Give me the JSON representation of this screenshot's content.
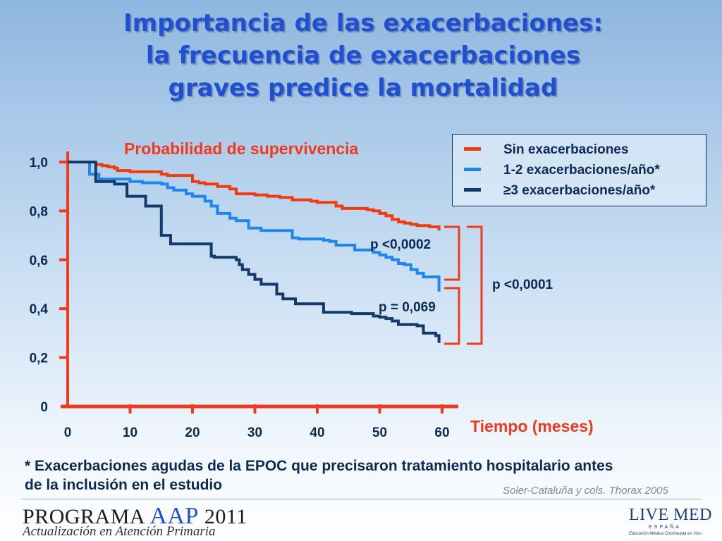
{
  "slide": {
    "title_lines": [
      "Importancia de las exacerbaciones:",
      "la frecuencia de exacerbaciones",
      "graves predice la mortalidad"
    ],
    "footnote_lines": [
      "* Exacerbaciones agudas de la EPOC que precisaron tratamiento hospitalario antes",
      "de la inclusión en el estudio"
    ],
    "citation": "Soler-Cataluña y cols. Thorax 2005"
  },
  "branding": {
    "program_prefix": "PROGRAMA ",
    "program_mark": "AAP",
    "program_year": " 2011",
    "program_subtitle": "Actualización en Atención Primaria",
    "sponsor_name": "LIVE MED",
    "sponsor_country": "ESPAÑA",
    "sponsor_tagline": "Educación Médica Continuada en Vivo"
  },
  "colors": {
    "accent_red": "#ef3b1c",
    "series_orange": "#f23b0c",
    "series_light_blue": "#1f86f0",
    "series_navy": "#123a6a",
    "text_navy": "#0b2b55",
    "title_blue": "#1f4fd2"
  },
  "chart_data": {
    "type": "line",
    "step": true,
    "title": "Probabilidad de supervivencia",
    "xlabel": "Tiempo (meses)",
    "ylabel": "",
    "xlim": [
      0,
      60
    ],
    "ylim": [
      0,
      1.0
    ],
    "x_ticks": [
      "0",
      "10",
      "20",
      "30",
      "40",
      "50",
      "60"
    ],
    "x_tick_values": [
      0,
      10,
      20,
      30,
      40,
      50,
      60
    ],
    "y_ticks": [
      "0",
      "0,2",
      "0,4",
      "0,6",
      "0,8",
      "1,0"
    ],
    "y_tick_values": [
      0,
      0.2,
      0.4,
      0.6,
      0.8,
      1.0
    ],
    "legend_position": "top-right",
    "grid": false,
    "series": [
      {
        "name": "Sin exacerbaciones",
        "color": "#f23b0c",
        "x": [
          0,
          4.5,
          5.5,
          6.5,
          7.5,
          8.0,
          10,
          15,
          16,
          20,
          21,
          22,
          24,
          26,
          27,
          30,
          32,
          34,
          36,
          39,
          40,
          43,
          44,
          47,
          48,
          49,
          50,
          51,
          52,
          53,
          54,
          55,
          56,
          58,
          59.5
        ],
        "y": [
          1.0,
          0.99,
          0.985,
          0.98,
          0.975,
          0.965,
          0.96,
          0.95,
          0.945,
          0.92,
          0.915,
          0.91,
          0.9,
          0.89,
          0.87,
          0.865,
          0.86,
          0.855,
          0.845,
          0.84,
          0.835,
          0.82,
          0.81,
          0.81,
          0.805,
          0.8,
          0.79,
          0.78,
          0.765,
          0.755,
          0.75,
          0.745,
          0.74,
          0.735,
          0.72
        ]
      },
      {
        "name": "1-2 exacerbaciones/año*",
        "color": "#1f86f0",
        "x": [
          0,
          3.5,
          5.0,
          10,
          12,
          15,
          16,
          17,
          19,
          20,
          22,
          23,
          24,
          26,
          27,
          29,
          31,
          34,
          36,
          37,
          41,
          42,
          43,
          46,
          49,
          50,
          51,
          52,
          53,
          54,
          55,
          56,
          57,
          59.5
        ],
        "y": [
          1.0,
          0.95,
          0.93,
          0.92,
          0.915,
          0.91,
          0.895,
          0.885,
          0.87,
          0.86,
          0.84,
          0.82,
          0.79,
          0.77,
          0.76,
          0.73,
          0.72,
          0.72,
          0.69,
          0.685,
          0.68,
          0.675,
          0.66,
          0.64,
          0.63,
          0.62,
          0.61,
          0.6,
          0.585,
          0.58,
          0.56,
          0.545,
          0.53,
          0.47
        ]
      },
      {
        "name": "≥3 exacerbaciones/año*",
        "color": "#123a6a",
        "x": [
          0,
          4.5,
          7.5,
          9.5,
          12.5,
          15,
          16.5,
          23,
          23.5,
          27,
          27.5,
          28,
          29,
          30,
          31,
          33.5,
          34.5,
          36.5,
          40.5,
          41,
          42,
          45,
          45.5,
          49,
          50,
          51,
          52,
          53,
          56,
          57,
          59,
          59.5
        ],
        "y": [
          1.0,
          0.92,
          0.91,
          0.86,
          0.82,
          0.7,
          0.665,
          0.615,
          0.61,
          0.6,
          0.58,
          0.56,
          0.54,
          0.52,
          0.5,
          0.46,
          0.44,
          0.42,
          0.42,
          0.385,
          0.385,
          0.385,
          0.38,
          0.37,
          0.365,
          0.36,
          0.35,
          0.335,
          0.33,
          0.3,
          0.29,
          0.26
        ]
      }
    ],
    "annotations": [
      {
        "text": "p <0,0002",
        "between": [
          "Sin exacerbaciones",
          "1-2 exacerbaciones/año*"
        ]
      },
      {
        "text": "p = 0,069",
        "between": [
          "1-2 exacerbaciones/año*",
          "≥3 exacerbaciones/año*"
        ]
      },
      {
        "text": "p <0,0001",
        "between": [
          "Sin exacerbaciones",
          "≥3 exacerbaciones/año*"
        ]
      }
    ]
  }
}
